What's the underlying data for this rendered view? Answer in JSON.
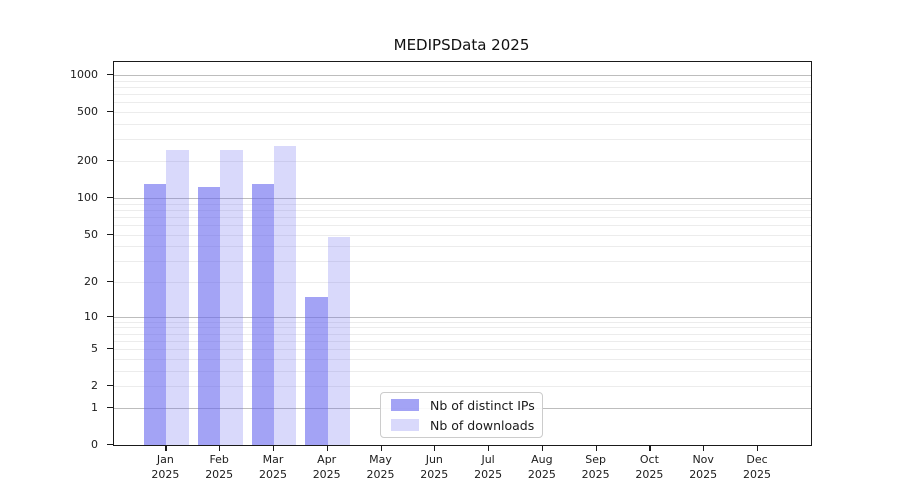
{
  "title": "MEDIPSData 2025",
  "chart_data": {
    "type": "bar",
    "title": "MEDIPSData 2025",
    "categories": [
      "Jan",
      "Feb",
      "Mar",
      "Apr",
      "May",
      "Jun",
      "Jul",
      "Aug",
      "Sep",
      "Oct",
      "Nov",
      "Dec"
    ],
    "year": "2025",
    "series": [
      {
        "name": "Nb of distinct IPs",
        "values": [
          130,
          124,
          129,
          15,
          null,
          null,
          null,
          null,
          null,
          null,
          null,
          null
        ]
      },
      {
        "name": "Nb of downloads",
        "values": [
          244,
          246,
          264,
          48,
          null,
          null,
          null,
          null,
          null,
          null,
          null,
          null
        ]
      }
    ],
    "yticks": [
      0,
      1,
      2,
      5,
      10,
      20,
      50,
      100,
      200,
      500,
      1000
    ],
    "minor_gridlines": [
      2,
      3,
      4,
      5,
      6,
      7,
      8,
      9,
      20,
      30,
      40,
      50,
      60,
      70,
      80,
      90,
      200,
      300,
      400,
      500,
      600,
      700,
      800,
      900
    ],
    "major_gridlines": [
      1,
      10,
      100,
      1000
    ],
    "scale": "log10(1+value)",
    "grid": true,
    "legend_position": "bottom-center-left",
    "colors": {
      "distinct_ips": "rgba(102,102,238,0.60)",
      "downloads": "rgba(102,102,238,0.25)",
      "axis": "#1a1a1a",
      "minor_grid": "#ececec",
      "major_grid": "#bdbdbd"
    }
  },
  "legend": {
    "items": [
      {
        "label": "Nb of distinct IPs",
        "color": "rgba(102,102,238,0.60)"
      },
      {
        "label": "Nb of downloads",
        "color": "rgba(102,102,238,0.25)"
      }
    ]
  }
}
